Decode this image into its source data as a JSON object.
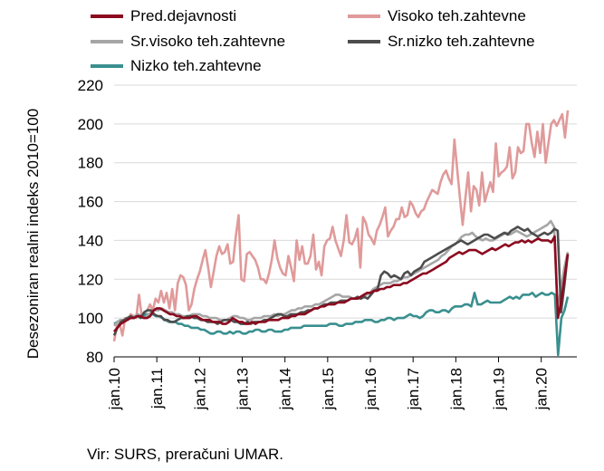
{
  "chart_data": {
    "type": "line",
    "title": "",
    "xlabel": "",
    "ylabel": "Desezoniran realni indeks 2010=100",
    "ylim": [
      80,
      220
    ],
    "yticks": [
      80,
      100,
      120,
      140,
      160,
      180,
      200,
      220
    ],
    "x_start": "jan.10",
    "x_ticks": [
      "jan.10",
      "jan.11",
      "jan.12",
      "jan.13",
      "jan.14",
      "jan.15",
      "jan.16",
      "jan.17",
      "jan.18",
      "jan.19",
      "jan.20"
    ],
    "grid": "horizontal",
    "legend_position": "top",
    "series": [
      {
        "name": "Pred.dejavnosti",
        "color": "#8b0a1e",
        "values": [
          93,
          95,
          97,
          98,
          99,
          100,
          100,
          101,
          101,
          100,
          100,
          101,
          104,
          105,
          105,
          104,
          103,
          102,
          102,
          101,
          101,
          100,
          100,
          100,
          101,
          101,
          100,
          99,
          99,
          99,
          98,
          98,
          98,
          97,
          97,
          98,
          100,
          99,
          98,
          98,
          97,
          97,
          98,
          97,
          98,
          98,
          98,
          99,
          99,
          99,
          99,
          100,
          100,
          100,
          101,
          101,
          102,
          102,
          102,
          103,
          104,
          105,
          105,
          106,
          106,
          107,
          107,
          107,
          108,
          108,
          108,
          109,
          110,
          110,
          110,
          111,
          112,
          113,
          113,
          114,
          114,
          115,
          115,
          116,
          116,
          117,
          117,
          117,
          118,
          118,
          119,
          120,
          121,
          122,
          123,
          123,
          124,
          125,
          126,
          127,
          128,
          129,
          131,
          132,
          133,
          134,
          133,
          134,
          135,
          135,
          135,
          134,
          133,
          134,
          135,
          136,
          135,
          136,
          137,
          138,
          137,
          138,
          139,
          139,
          140,
          139,
          140,
          139,
          140,
          141,
          140,
          140,
          140,
          139,
          142,
          100,
          108,
          121,
          133
        ]
      },
      {
        "name": "Visoko teh.zahtevne",
        "color": "#e09a9a",
        "values": [
          88,
          96,
          97,
          91,
          100,
          99,
          102,
          101,
          100,
          112,
          101,
          103,
          104,
          107,
          104,
          110,
          108,
          114,
          108,
          113,
          105,
          115,
          104,
          118,
          122,
          121,
          117,
          104,
          107,
          115,
          120,
          124,
          130,
          135,
          126,
          116,
          124,
          132,
          137,
          133,
          134,
          138,
          128,
          129,
          142,
          153,
          120,
          119,
          133,
          134,
          132,
          130,
          126,
          120,
          120,
          118,
          123,
          130,
          140,
          131,
          126,
          123,
          122,
          132,
          126,
          119,
          140,
          130,
          137,
          128,
          128,
          132,
          143,
          125,
          129,
          122,
          137,
          140,
          141,
          147,
          140,
          136,
          132,
          140,
          153,
          139,
          138,
          141,
          146,
          126,
          152,
          149,
          143,
          141,
          138,
          145,
          148,
          152,
          157,
          142,
          145,
          147,
          151,
          151,
          157,
          152,
          153,
          160,
          158,
          154,
          152,
          155,
          156,
          160,
          163,
          166,
          165,
          164,
          170,
          174,
          176,
          172,
          169,
          192,
          177,
          162,
          148,
          162,
          175,
          155,
          168,
          166,
          158,
          175,
          160,
          165,
          170,
          165,
          190,
          173,
          175,
          176,
          178,
          188,
          172,
          175,
          188,
          185,
          186,
          200,
          200,
          190,
          183,
          196,
          185,
          200,
          180,
          190,
          200,
          202,
          199,
          202,
          205,
          193,
          207
        ]
      },
      {
        "name": "Sr.visoko teh.zahtevne",
        "color": "#a6a6a6",
        "values": [
          96,
          98,
          99,
          99,
          100,
          100,
          101,
          102,
          101,
          100,
          102,
          103,
          104,
          104,
          105,
          104,
          103,
          103,
          102,
          102,
          101,
          101,
          101,
          102,
          102,
          102,
          101,
          101,
          100,
          100,
          100,
          99,
          99,
          99,
          100,
          101,
          101,
          100,
          100,
          99,
          99,
          100,
          100,
          100,
          101,
          101,
          101,
          102,
          101,
          102,
          102,
          103,
          104,
          104,
          105,
          105,
          106,
          106,
          106,
          107,
          107,
          108,
          109,
          110,
          111,
          112,
          112,
          111,
          111,
          111,
          110,
          110,
          110,
          111,
          112,
          113,
          115,
          116,
          117,
          118,
          118,
          118,
          119,
          119,
          120,
          121,
          121,
          122,
          123,
          124,
          125,
          126,
          127,
          128,
          129,
          130,
          132,
          133,
          135,
          137,
          138,
          140,
          142,
          143,
          143,
          144,
          142,
          141,
          140,
          141,
          140,
          140,
          141,
          142,
          143,
          144,
          143,
          144,
          145,
          144,
          143,
          142,
          143,
          144,
          145,
          146,
          147,
          148,
          150,
          147,
          104,
          115,
          126,
          134
        ]
      },
      {
        "name": "Sr.nizko teh.zahtevne",
        "color": "#4d4d4d",
        "values": [
          91,
          95,
          98,
          99,
          100,
          101,
          100,
          101,
          100,
          103,
          104,
          104,
          102,
          101,
          101,
          99,
          99,
          98,
          98,
          99,
          100,
          100,
          101,
          101,
          100,
          100,
          99,
          99,
          98,
          98,
          98,
          97,
          98,
          99,
          99,
          99,
          98,
          98,
          97,
          97,
          98,
          97,
          98,
          98,
          98,
          99,
          99,
          100,
          101,
          102,
          102,
          101,
          101,
          102,
          102,
          102,
          103,
          103,
          104,
          104,
          105,
          105,
          106,
          107,
          107,
          108,
          108,
          108,
          109,
          109,
          109,
          110,
          110,
          111,
          110,
          111,
          110,
          112,
          114,
          115,
          122,
          124,
          123,
          121,
          122,
          121,
          120,
          123,
          124,
          122,
          124,
          125,
          126,
          129,
          130,
          131,
          132,
          133,
          134,
          135,
          136,
          137,
          138,
          139,
          140,
          139,
          138,
          139,
          140,
          141,
          142,
          143,
          143,
          142,
          141,
          142,
          143,
          144,
          143,
          145,
          146,
          147,
          146,
          145,
          146,
          144,
          143,
          142,
          143,
          144,
          143,
          144,
          146,
          145,
          103,
          117,
          133
        ]
      },
      {
        "name": "Nizko teh.zahtevne",
        "color": "#3a8f8f",
        "values": [
          97,
          98,
          99,
          99,
          100,
          100,
          100,
          101,
          101,
          101,
          102,
          102,
          102,
          101,
          101,
          100,
          99,
          98,
          98,
          98,
          97,
          97,
          96,
          96,
          95,
          95,
          95,
          94,
          94,
          93,
          92,
          92,
          93,
          93,
          92,
          92,
          93,
          92,
          93,
          93,
          92,
          92,
          93,
          93,
          94,
          94,
          93,
          93,
          94,
          94,
          93,
          93,
          93,
          94,
          94,
          95,
          95,
          95,
          95,
          96,
          96,
          96,
          96,
          96,
          96,
          96,
          96,
          97,
          97,
          97,
          96,
          96,
          97,
          97,
          97,
          98,
          98,
          98,
          99,
          99,
          99,
          98,
          98,
          99,
          99,
          100,
          100,
          99,
          100,
          100,
          100,
          101,
          102,
          101,
          101,
          100,
          101,
          103,
          104,
          104,
          103,
          103,
          104,
          104,
          103,
          105,
          106,
          106,
          106,
          107,
          107,
          106,
          113,
          107,
          107,
          108,
          109,
          108,
          108,
          108,
          108,
          109,
          110,
          111,
          110,
          111,
          110,
          112,
          112,
          112,
          113,
          111,
          112,
          113,
          112,
          112,
          113,
          112,
          81,
          100,
          104,
          111
        ]
      }
    ]
  },
  "source_text": "Vir: SURS, preračuni UMAR."
}
